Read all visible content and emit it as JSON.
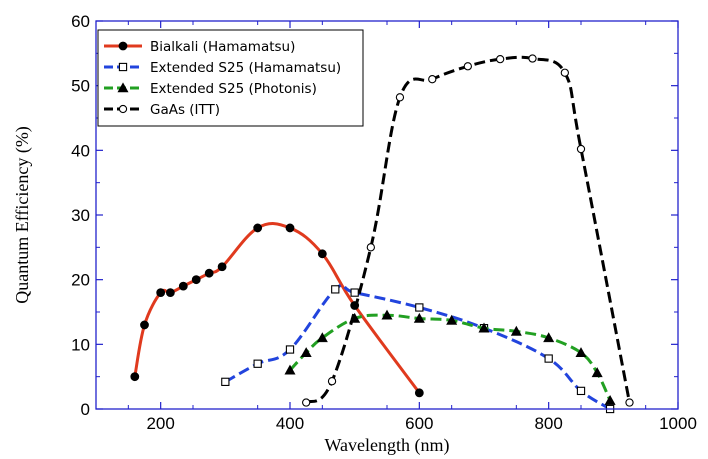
{
  "chart_data": {
    "type": "line",
    "xlabel": "Wavelength (nm)",
    "ylabel": "Quantum Efficiency (%)",
    "xlim": [
      100,
      1000
    ],
    "ylim": [
      0,
      60
    ],
    "x_ticks": [
      200,
      400,
      600,
      800,
      1000
    ],
    "y_ticks": [
      0,
      10,
      20,
      30,
      40,
      50,
      60
    ],
    "grid": false,
    "legend_position": "top-left",
    "series": [
      {
        "name": "Bialkali (Hamamatsu)",
        "color": "#e03a1e",
        "line_style": "solid",
        "marker": "filled-circle",
        "x": [
          160,
          175,
          200,
          215,
          235,
          255,
          275,
          295,
          350,
          400,
          450,
          500,
          600
        ],
        "y": [
          5,
          13,
          18,
          18,
          19,
          20,
          21,
          22,
          28,
          28,
          24,
          16,
          2.5
        ]
      },
      {
        "name": "Extended S25 (Hamamatsu)",
        "color": "#2244dd",
        "line_style": "dashed",
        "marker": "open-square",
        "x": [
          300,
          350,
          400,
          470,
          500,
          600,
          700,
          800,
          850,
          895
        ],
        "y": [
          4.2,
          7,
          9.2,
          18.5,
          18,
          15.7,
          12.5,
          7.8,
          2.8,
          0
        ]
      },
      {
        "name": "Extended S25 (Photonis)",
        "color": "#22a022",
        "line_style": "dashed",
        "marker": "filled-triangle",
        "x": [
          400,
          425,
          450,
          500,
          550,
          600,
          650,
          700,
          750,
          800,
          850,
          875,
          895
        ],
        "y": [
          6,
          8.7,
          11,
          14,
          14.5,
          14,
          13.7,
          12.5,
          12,
          11,
          8.7,
          5.6,
          1.3
        ]
      },
      {
        "name": "GaAs (ITT)",
        "color": "#000000",
        "line_style": "dashed",
        "marker": "open-circle",
        "x": [
          425,
          465,
          525,
          570,
          620,
          675,
          725,
          775,
          825,
          850,
          925
        ],
        "y": [
          1,
          4.3,
          25,
          48.2,
          51,
          53,
          54.1,
          54.2,
          52,
          40.2,
          1
        ]
      }
    ]
  }
}
